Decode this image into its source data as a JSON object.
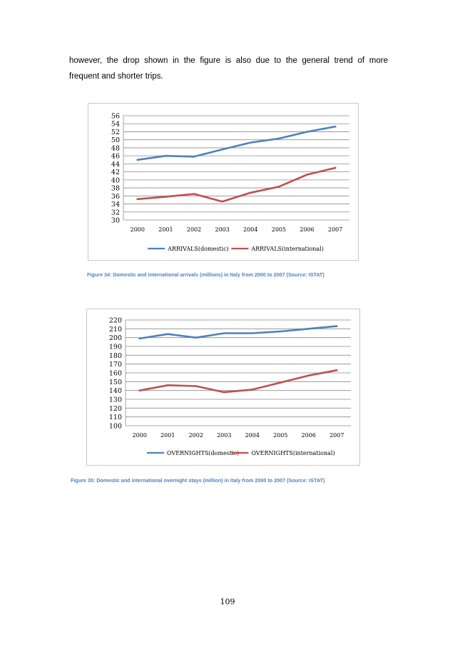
{
  "text": {
    "line1": "however, the drop shown in the figure is also due to the general trend of more",
    "line2": "frequent and shorter trips."
  },
  "captions": {
    "figure34": "Figure 34: Domestic and international arrivals (millions) in Italy from 2000 to 2007 (Source: ISTAT)",
    "figure35": "Figure 35: Domestic and international overnight stays (million) in Italy from 2000 to 2007 (Source: ISTAT)"
  },
  "page_number": "109",
  "colors": {
    "domestic": "#4f81bd",
    "international": "#c0504d",
    "grid": "#8c8c8c",
    "caption": "#4f81bd"
  },
  "chart_data": [
    {
      "type": "line",
      "title": "",
      "xlabel": "",
      "ylabel": "",
      "categories": [
        "2000",
        "2001",
        "2002",
        "2003",
        "2004",
        "2005",
        "2006",
        "2007"
      ],
      "ylim": [
        30,
        56
      ],
      "ystep": 2,
      "grid": true,
      "legend": "bottom",
      "series": [
        {
          "name": "ARRIVALS(domestic)",
          "values": [
            45.0,
            46.0,
            45.8,
            47.6,
            49.3,
            50.3,
            52.0,
            53.3
          ]
        },
        {
          "name": "ARRIVALS(international)",
          "values": [
            35.2,
            35.8,
            36.5,
            34.6,
            36.8,
            38.3,
            41.3,
            43.0
          ]
        }
      ]
    },
    {
      "type": "line",
      "title": "",
      "xlabel": "",
      "ylabel": "",
      "categories": [
        "2000",
        "2001",
        "2002",
        "2003",
        "2004",
        "2005",
        "2006",
        "2007"
      ],
      "ylim": [
        100,
        220
      ],
      "ystep": 10,
      "grid": true,
      "legend": "bottom",
      "series": [
        {
          "name": "OVERNIGHTS(domestic)",
          "values": [
            199,
            204,
            200,
            205,
            205,
            207,
            210,
            213
          ]
        },
        {
          "name": "OVERNIGHTS(international)",
          "values": [
            140,
            146,
            145,
            138,
            141,
            149,
            157,
            163
          ]
        }
      ]
    }
  ]
}
